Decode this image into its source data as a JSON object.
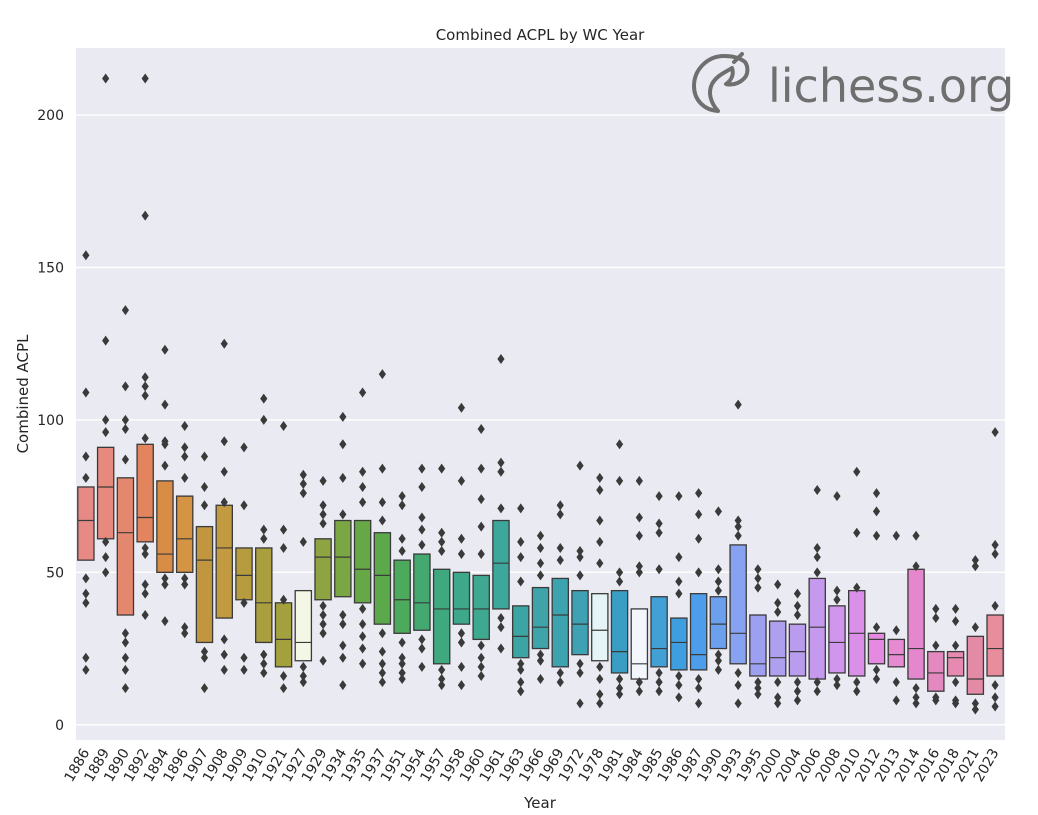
{
  "chart_data": {
    "type": "box",
    "title": "Combined ACPL by WC Year",
    "xlabel": "Year",
    "ylabel": "Combined ACPL",
    "ylim": [
      -5,
      222
    ],
    "yticks": [
      0,
      50,
      100,
      150,
      200
    ],
    "grid": true,
    "watermark": "lichess.org",
    "categories": [
      "1886",
      "1889",
      "1890",
      "1892",
      "1894",
      "1896",
      "1907",
      "1908",
      "1909",
      "1910",
      "1921",
      "1927",
      "1929",
      "1934",
      "1935",
      "1937",
      "1951",
      "1954",
      "1957",
      "1958",
      "1960",
      "1961",
      "1963",
      "1966",
      "1969",
      "1972",
      "1978",
      "1981",
      "1984",
      "1985",
      "1986",
      "1987",
      "1990",
      "1993",
      "1995",
      "2000",
      "2004",
      "2006",
      "2008",
      "2010",
      "2012",
      "2013",
      "2014",
      "2016",
      "2018",
      "2021",
      "2023"
    ],
    "colors": [
      "#e78a86",
      "#e58a7c",
      "#e4876f",
      "#e2855f",
      "#d98c45",
      "#d49444",
      "#c2963f",
      "#c29a3f",
      "#b69c3e",
      "#aa9f3e",
      "#a3a03e",
      "#f4f7e6",
      "#8ea442",
      "#7aa744",
      "#67a846",
      "#5ba94a",
      "#4caa5c",
      "#44a970",
      "#3fa87f",
      "#3ea88a",
      "#3fa891",
      "#3ea79b",
      "#3ca5a3",
      "#3ea4a9",
      "#3da3ae",
      "#3ea1b4",
      "#e5f5f7",
      "#3a9dc4",
      "#f3f6fc",
      "#42a0d6",
      "#3f9ee0",
      "#4c9eec",
      "#6ba0ef",
      "#87a2f0",
      "#9da0f0",
      "#aea0ee",
      "#b99cee",
      "#c59aee",
      "#d095ec",
      "#da90e8",
      "#e589e3",
      "#e68ad2",
      "#e487cc",
      "#e489bf",
      "#e68ab2",
      "#e28aa6",
      "#e78d9c"
    ],
    "boxes": [
      {
        "median": 67,
        "q1": 54,
        "q3": 78,
        "outliers": [
          154,
          109,
          88,
          81,
          48,
          43,
          40,
          22,
          18
        ]
      },
      {
        "median": 78,
        "q1": 61,
        "q3": 91,
        "outliers": [
          212,
          126,
          100,
          96,
          60,
          55,
          50
        ]
      },
      {
        "median": 63,
        "q1": 36,
        "q3": 81,
        "outliers": [
          136,
          111,
          100,
          97,
          87,
          30,
          27,
          22,
          18,
          12
        ]
      },
      {
        "median": 68,
        "q1": 60,
        "q3": 92,
        "outliers": [
          212,
          167,
          114,
          111,
          108,
          94,
          58,
          56,
          46,
          43,
          36
        ]
      },
      {
        "median": 56,
        "q1": 50,
        "q3": 80,
        "outliers": [
          123,
          105,
          93,
          92,
          85,
          48,
          46,
          34
        ]
      },
      {
        "median": 61,
        "q1": 50,
        "q3": 75,
        "outliers": [
          98,
          91,
          88,
          81,
          48,
          46,
          32,
          30
        ]
      },
      {
        "median": 54,
        "q1": 27,
        "q3": 65,
        "outliers": [
          88,
          78,
          72,
          24,
          22,
          12
        ]
      },
      {
        "median": 58,
        "q1": 35,
        "q3": 72,
        "outliers": [
          125,
          93,
          83,
          73,
          28,
          23,
          18
        ]
      },
      {
        "median": 49,
        "q1": 41,
        "q3": 58,
        "outliers": [
          91,
          72,
          40,
          22,
          18
        ]
      },
      {
        "median": 40,
        "q1": 27,
        "q3": 58,
        "outliers": [
          107,
          100,
          64,
          61,
          23,
          20,
          17
        ]
      },
      {
        "median": 28,
        "q1": 19,
        "q3": 40,
        "outliers": [
          98,
          64,
          58,
          41,
          16,
          12
        ]
      },
      {
        "median": 27,
        "q1": 21,
        "q3": 44,
        "outliers": [
          82,
          79,
          76,
          60,
          19,
          16,
          14
        ]
      },
      {
        "median": 55,
        "q1": 41,
        "q3": 61,
        "outliers": [
          80,
          72,
          69,
          66,
          39,
          36,
          33,
          30,
          21
        ]
      },
      {
        "median": 55,
        "q1": 42,
        "q3": 67,
        "outliers": [
          101,
          92,
          81,
          69,
          36,
          33,
          26,
          22,
          13
        ]
      },
      {
        "median": 51,
        "q1": 40,
        "q3": 67,
        "outliers": [
          109,
          83,
          78,
          73,
          38,
          33,
          29,
          25,
          20
        ]
      },
      {
        "median": 49,
        "q1": 33,
        "q3": 63,
        "outliers": [
          115,
          84,
          73,
          67,
          30,
          24,
          20,
          17,
          14
        ]
      },
      {
        "median": 41,
        "q1": 30,
        "q3": 54,
        "outliers": [
          75,
          72,
          61,
          57,
          27,
          22,
          20,
          17,
          15
        ]
      },
      {
        "median": 40,
        "q1": 31,
        "q3": 56,
        "outliers": [
          84,
          78,
          68,
          64,
          59,
          28,
          25,
          19
        ]
      },
      {
        "median": 38,
        "q1": 20,
        "q3": 51,
        "outliers": [
          84,
          63,
          60,
          57,
          18,
          15,
          13
        ]
      },
      {
        "median": 38,
        "q1": 33,
        "q3": 50,
        "outliers": [
          104,
          80,
          61,
          56,
          30,
          27,
          19,
          13
        ]
      },
      {
        "median": 38,
        "q1": 28,
        "q3": 49,
        "outliers": [
          97,
          84,
          74,
          65,
          56,
          26,
          22,
          19,
          16
        ]
      },
      {
        "median": 53,
        "q1": 38,
        "q3": 67,
        "outliers": [
          120,
          86,
          83,
          71,
          35,
          32,
          25
        ]
      },
      {
        "median": 29,
        "q1": 22,
        "q3": 39,
        "outliers": [
          71,
          60,
          55,
          47,
          20,
          18,
          14,
          11
        ]
      },
      {
        "median": 32,
        "q1": 25,
        "q3": 45,
        "outliers": [
          62,
          58,
          53,
          49,
          23,
          21,
          15
        ]
      },
      {
        "median": 36,
        "q1": 19,
        "q3": 48,
        "outliers": [
          72,
          69,
          58,
          54,
          17,
          14
        ]
      },
      {
        "median": 33,
        "q1": 23,
        "q3": 44,
        "outliers": [
          85,
          57,
          55,
          49,
          20,
          17,
          7
        ]
      },
      {
        "median": 31,
        "q1": 21,
        "q3": 43,
        "outliers": [
          81,
          77,
          67,
          60,
          53,
          19,
          15,
          10,
          7
        ]
      },
      {
        "median": 24,
        "q1": 17,
        "q3": 44,
        "outliers": [
          92,
          80,
          50,
          47,
          15,
          12,
          10
        ]
      },
      {
        "median": 20,
        "q1": 15,
        "q3": 38,
        "outliers": [
          80,
          68,
          62,
          52,
          50,
          14,
          11
        ]
      },
      {
        "median": 25,
        "q1": 19,
        "q3": 42,
        "outliers": [
          75,
          66,
          63,
          51,
          17,
          14,
          11
        ]
      },
      {
        "median": 27,
        "q1": 18,
        "q3": 35,
        "outliers": [
          75,
          55,
          47,
          43,
          16,
          13,
          9
        ]
      },
      {
        "median": 23,
        "q1": 18,
        "q3": 43,
        "outliers": [
          76,
          69,
          61,
          50,
          15,
          12,
          7
        ]
      },
      {
        "median": 33,
        "q1": 25,
        "q3": 42,
        "outliers": [
          70,
          51,
          47,
          44,
          23,
          21,
          18
        ]
      },
      {
        "median": 30,
        "q1": 20,
        "q3": 59,
        "outliers": [
          105,
          67,
          65,
          62,
          17,
          13,
          7
        ]
      },
      {
        "median": 20,
        "q1": 16,
        "q3": 36,
        "outliers": [
          51,
          48,
          45,
          14,
          12,
          10
        ]
      },
      {
        "median": 22,
        "q1": 16,
        "q3": 34,
        "outliers": [
          46,
          40,
          37,
          14,
          9,
          7
        ]
      },
      {
        "median": 24,
        "q1": 16,
        "q3": 33,
        "outliers": [
          43,
          39,
          36,
          14,
          11,
          8
        ]
      },
      {
        "median": 32,
        "q1": 15,
        "q3": 48,
        "outliers": [
          77,
          58,
          55,
          50,
          14,
          11
        ]
      },
      {
        "median": 27,
        "q1": 17,
        "q3": 39,
        "outliers": [
          75,
          44,
          41,
          15,
          13
        ]
      },
      {
        "median": 30,
        "q1": 16,
        "q3": 44,
        "outliers": [
          83,
          63,
          45,
          14,
          11
        ]
      },
      {
        "median": 28,
        "q1": 20,
        "q3": 30,
        "outliers": [
          76,
          70,
          62,
          32,
          18,
          15
        ]
      },
      {
        "median": 23,
        "q1": 19,
        "q3": 28,
        "outliers": [
          62,
          31,
          14,
          8
        ]
      },
      {
        "median": 25,
        "q1": 15,
        "q3": 51,
        "outliers": [
          62,
          52,
          12,
          9,
          7
        ]
      },
      {
        "median": 17,
        "q1": 11,
        "q3": 24,
        "outliers": [
          38,
          35,
          26,
          9,
          8
        ]
      },
      {
        "median": 22,
        "q1": 16,
        "q3": 24,
        "outliers": [
          38,
          34,
          26,
          14,
          8,
          7
        ]
      },
      {
        "median": 15,
        "q1": 10,
        "q3": 29,
        "outliers": [
          54,
          52,
          32,
          7,
          5
        ]
      },
      {
        "median": 25,
        "q1": 16,
        "q3": 36,
        "outliers": [
          96,
          59,
          56,
          39,
          13,
          9,
          6
        ]
      }
    ]
  }
}
